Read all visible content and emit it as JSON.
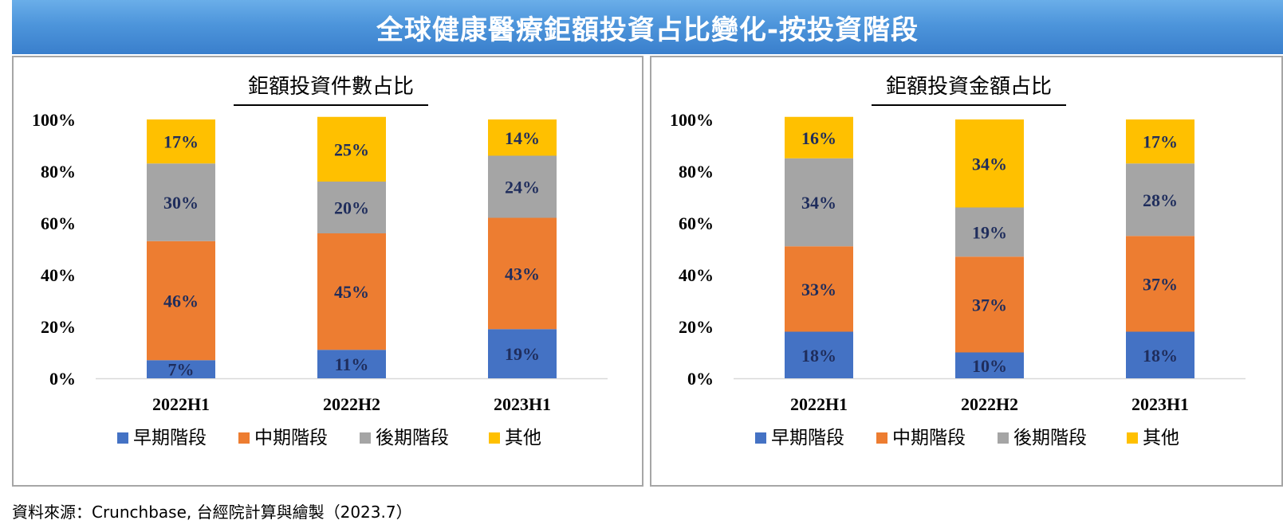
{
  "page_title": "全球健康醫療鉅額投資占比變化-按投資階段",
  "source_note": "資料來源：Crunchbase, 台經院計算與繪製（2023.7）",
  "colors": {
    "early": "#4472c4",
    "mid": "#ed7d31",
    "late": "#a5a5a5",
    "other": "#ffc000",
    "banner": "#3f85d1",
    "label": "#1f2d5c"
  },
  "chart_data": [
    {
      "type": "bar",
      "stacked": true,
      "title": "鉅額投資件數占比",
      "categories": [
        "2022H1",
        "2022H2",
        "2023H1"
      ],
      "ylim": [
        0,
        100
      ],
      "yticks": [
        "0%",
        "20%",
        "40%",
        "60%",
        "80%",
        "100%"
      ],
      "ytick_values": [
        0,
        20,
        40,
        60,
        80,
        100
      ],
      "grid": false,
      "legend_position": "bottom",
      "series": [
        {
          "name": "早期階段",
          "color": "#4472c4",
          "values": [
            7,
            11,
            19
          ],
          "labels": [
            "7%",
            "11%",
            "19%"
          ]
        },
        {
          "name": "中期階段",
          "color": "#ed7d31",
          "values": [
            46,
            45,
            43
          ],
          "labels": [
            "46%",
            "45%",
            "43%"
          ]
        },
        {
          "name": "後期階段",
          "color": "#a5a5a5",
          "values": [
            30,
            20,
            24
          ],
          "labels": [
            "30%",
            "20%",
            "24%"
          ]
        },
        {
          "name": "其他",
          "color": "#ffc000",
          "values": [
            17,
            25,
            14
          ],
          "labels": [
            "17%",
            "25%",
            "14%"
          ]
        }
      ]
    },
    {
      "type": "bar",
      "stacked": true,
      "title": "鉅額投資金額占比",
      "categories": [
        "2022H1",
        "2022H2",
        "2023H1"
      ],
      "ylim": [
        0,
        100
      ],
      "yticks": [
        "0%",
        "20%",
        "40%",
        "60%",
        "80%",
        "100%"
      ],
      "ytick_values": [
        0,
        20,
        40,
        60,
        80,
        100
      ],
      "grid": false,
      "legend_position": "bottom",
      "series": [
        {
          "name": "早期階段",
          "color": "#4472c4",
          "values": [
            18,
            10,
            18
          ],
          "labels": [
            "18%",
            "10%",
            "18%"
          ]
        },
        {
          "name": "中期階段",
          "color": "#ed7d31",
          "values": [
            33,
            37,
            37
          ],
          "labels": [
            "33%",
            "37%",
            "37%"
          ]
        },
        {
          "name": "後期階段",
          "color": "#a5a5a5",
          "values": [
            34,
            19,
            28
          ],
          "labels": [
            "34%",
            "19%",
            "28%"
          ]
        },
        {
          "name": "其他",
          "color": "#ffc000",
          "values": [
            16,
            34,
            17
          ],
          "labels": [
            "16%",
            "34%",
            "17%"
          ]
        }
      ]
    }
  ]
}
